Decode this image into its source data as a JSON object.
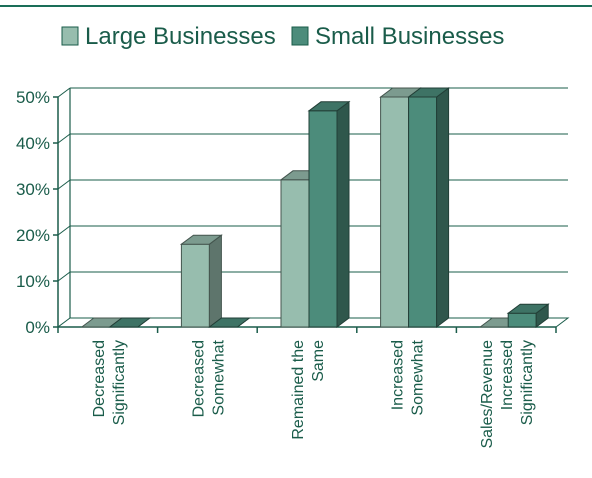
{
  "chart_data": {
    "type": "bar",
    "three_d": true,
    "categories": [
      [
        "Decreased",
        "Significantly"
      ],
      [
        "Decreased",
        "Somewhat"
      ],
      [
        "Remained the",
        "Same"
      ],
      [
        "Increased",
        "Somewhat"
      ],
      [
        "Sales/Revenue",
        "Increased",
        "Significantly"
      ]
    ],
    "series": [
      {
        "name": "Large Businesses",
        "values": [
          0,
          18,
          32,
          50,
          0
        ],
        "color": "#97bdae"
      },
      {
        "name": "Small Businesses",
        "values": [
          0,
          0,
          47,
          50,
          3
        ],
        "color": "#4c8c7b"
      }
    ],
    "y_ticks": [
      "0%",
      "10%",
      "20%",
      "30%",
      "40%",
      "50%"
    ],
    "ylim": [
      0,
      50
    ],
    "grid": true,
    "legend_position": "top",
    "colors": {
      "axis": "#1a5c4a",
      "rule": "#1a6e58",
      "text": "#1a5c4a"
    }
  }
}
